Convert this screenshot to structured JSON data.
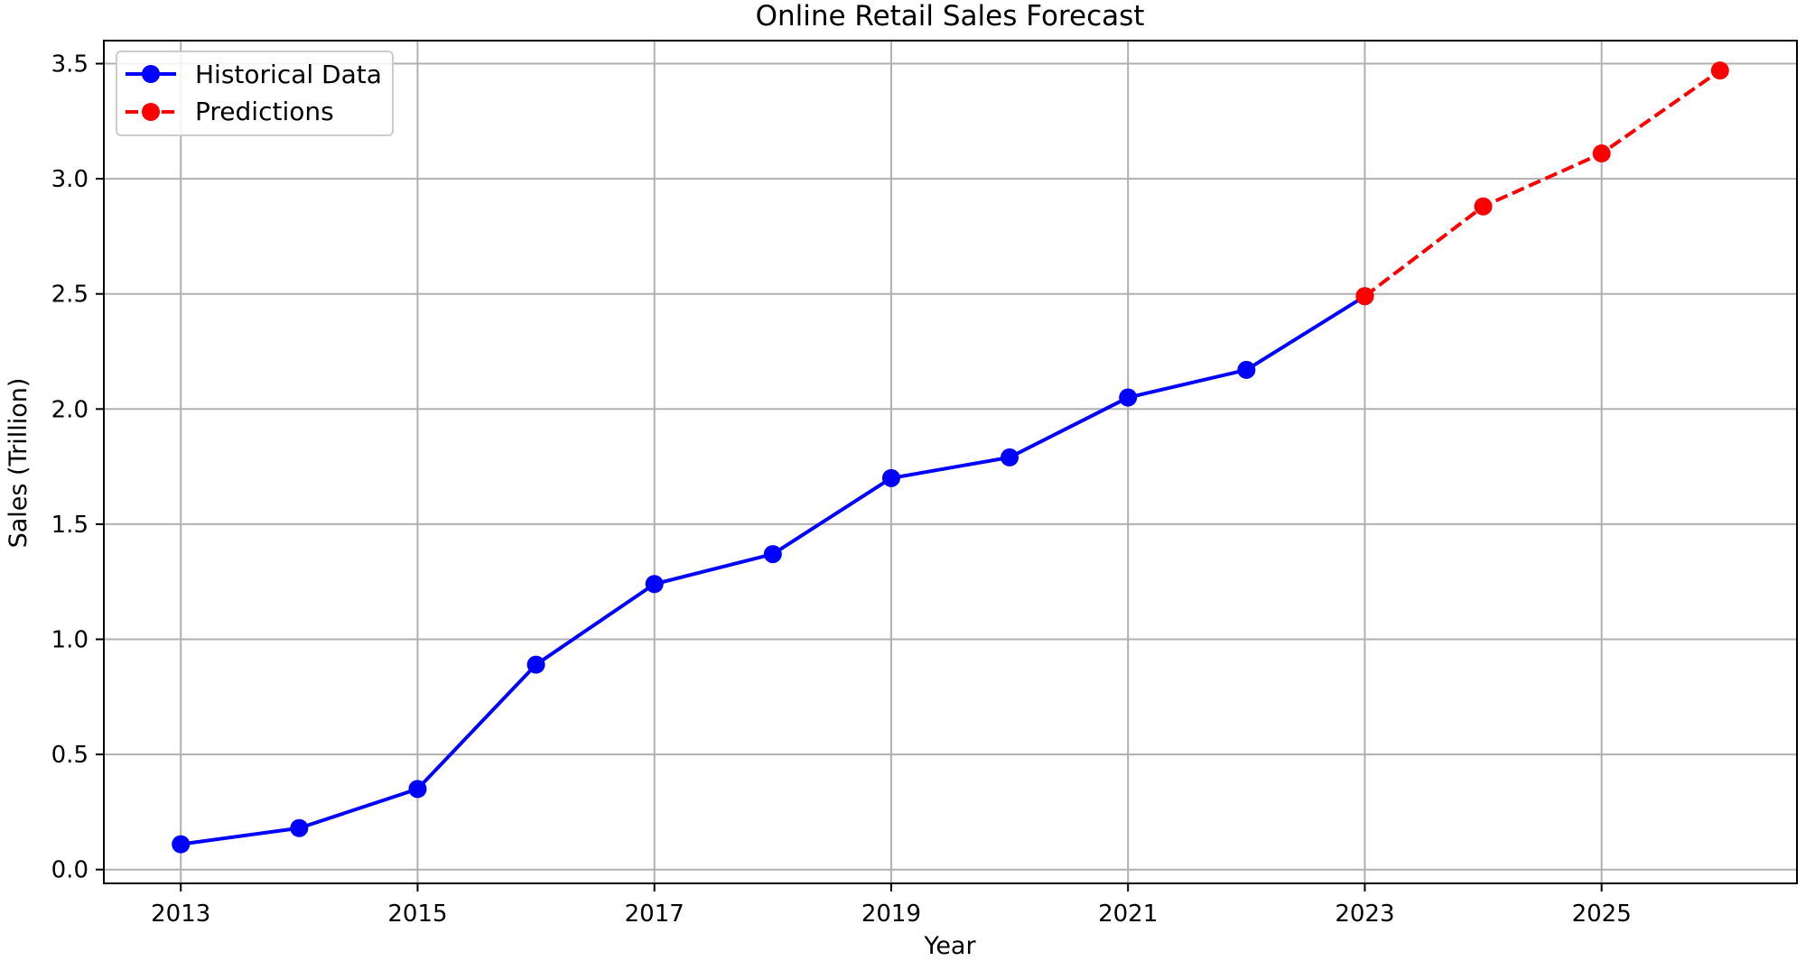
{
  "chart_data": {
    "type": "line",
    "title": "Online Retail Sales Forecast",
    "xlabel": "Year",
    "ylabel": "Sales (Trillion)",
    "xlim": [
      2012.35,
      2026.65
    ],
    "ylim": [
      -0.06,
      3.6
    ],
    "xticks": [
      2013,
      2015,
      2017,
      2019,
      2021,
      2023,
      2025
    ],
    "yticks": [
      0.0,
      0.5,
      1.0,
      1.5,
      2.0,
      2.5,
      3.0,
      3.5
    ],
    "grid": true,
    "legend_position": "upper-left",
    "series": [
      {
        "name": "Historical Data",
        "color": "#0000ff",
        "linestyle": "solid",
        "marker": "circle",
        "x": [
          2013,
          2014,
          2015,
          2016,
          2017,
          2018,
          2019,
          2020,
          2021,
          2022,
          2023
        ],
        "y": [
          0.11,
          0.18,
          0.35,
          0.89,
          1.24,
          1.37,
          1.7,
          1.79,
          2.05,
          2.17,
          2.49
        ]
      },
      {
        "name": "Predictions",
        "color": "#ff0000",
        "linestyle": "dashed",
        "marker": "circle",
        "x": [
          2023,
          2024,
          2025,
          2026
        ],
        "y": [
          2.49,
          2.88,
          3.11,
          3.47
        ]
      }
    ]
  }
}
